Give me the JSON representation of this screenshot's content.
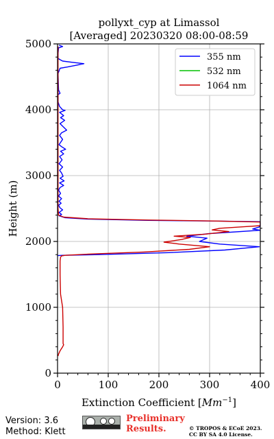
{
  "chart_data": {
    "type": "line",
    "title": "pollyxt_cyp at Limassol",
    "subtitle": "[Averaged] 20230320 08:00-08:59",
    "xlabel": "Extinction Coefficient [",
    "xlabel_unit": "Mm",
    "xlabel_exp": "−1",
    "xlabel_close": "]",
    "ylabel": "Height (m)",
    "xlim": [
      0,
      400
    ],
    "ylim": [
      0,
      5000
    ],
    "xticks": [
      0,
      100,
      200,
      300,
      400
    ],
    "yticks": [
      0,
      1000,
      2000,
      3000,
      4000,
      5000
    ],
    "xtick_labels": [
      "0",
      "100",
      "200",
      "300",
      "400"
    ],
    "ytick_labels": [
      "0",
      "1000",
      "2000",
      "3000",
      "4000",
      "5000"
    ],
    "grid": true,
    "legend_position": "top-right",
    "series": [
      {
        "name": "355 nm",
        "color": "#0000ff",
        "points": [
          [
            3,
            4980
          ],
          [
            10,
            4960
          ],
          [
            2,
            4940
          ],
          [
            1,
            4850
          ],
          [
            1,
            4780
          ],
          [
            5,
            4760
          ],
          [
            10,
            4740
          ],
          [
            30,
            4720
          ],
          [
            52,
            4700
          ],
          [
            40,
            4680
          ],
          [
            20,
            4650
          ],
          [
            5,
            4630
          ],
          [
            1,
            4550
          ],
          [
            2,
            4300
          ],
          [
            5,
            4250
          ],
          [
            1,
            4230
          ],
          [
            1,
            4120
          ],
          [
            4,
            4050
          ],
          [
            10,
            4000
          ],
          [
            15,
            3990
          ],
          [
            4,
            3960
          ],
          [
            12,
            3910
          ],
          [
            6,
            3880
          ],
          [
            14,
            3840
          ],
          [
            5,
            3790
          ],
          [
            18,
            3690
          ],
          [
            8,
            3650
          ],
          [
            4,
            3610
          ],
          [
            10,
            3550
          ],
          [
            3,
            3470
          ],
          [
            8,
            3440
          ],
          [
            16,
            3400
          ],
          [
            6,
            3370
          ],
          [
            12,
            3330
          ],
          [
            4,
            3290
          ],
          [
            9,
            3240
          ],
          [
            3,
            3180
          ],
          [
            10,
            3130
          ],
          [
            4,
            3080
          ],
          [
            8,
            3040
          ],
          [
            11,
            2990
          ],
          [
            5,
            2960
          ],
          [
            13,
            2920
          ],
          [
            4,
            2890
          ],
          [
            12,
            2850
          ],
          [
            5,
            2820
          ],
          [
            2,
            2780
          ],
          [
            6,
            2730
          ],
          [
            2,
            2690
          ],
          [
            8,
            2650
          ],
          [
            3,
            2610
          ],
          [
            7,
            2580
          ],
          [
            2,
            2550
          ],
          [
            5,
            2510
          ],
          [
            10,
            2480
          ],
          [
            3,
            2440
          ],
          [
            8,
            2410
          ],
          [
            3,
            2390
          ],
          [
            15,
            2360
          ],
          [
            60,
            2340
          ],
          [
            180,
            2320
          ],
          [
            300,
            2310
          ],
          [
            400,
            2300
          ],
          [
            400,
            2250
          ],
          [
            398,
            2220
          ],
          [
            385,
            2190
          ],
          [
            400,
            2170
          ],
          [
            300,
            2120
          ],
          [
            255,
            2080
          ],
          [
            295,
            2050
          ],
          [
            280,
            2000
          ],
          [
            320,
            1960
          ],
          [
            398,
            1920
          ],
          [
            330,
            1870
          ],
          [
            220,
            1830
          ],
          [
            80,
            1800
          ],
          [
            10,
            1790
          ],
          [
            0,
            1785
          ]
        ]
      },
      {
        "name": "532 nm",
        "color": "#00c000",
        "points": []
      },
      {
        "name": "1064 nm",
        "color": "#cc0000",
        "points": [
          [
            1,
            4960
          ],
          [
            1,
            4700
          ],
          [
            1,
            4400
          ],
          [
            1,
            4000
          ],
          [
            1,
            3600
          ],
          [
            1,
            3200
          ],
          [
            1,
            2800
          ],
          [
            1,
            2500
          ],
          [
            2,
            2400
          ],
          [
            12,
            2370
          ],
          [
            60,
            2345
          ],
          [
            180,
            2325
          ],
          [
            310,
            2310
          ],
          [
            400,
            2295
          ],
          [
            400,
            2240
          ],
          [
            370,
            2225
          ],
          [
            320,
            2200
          ],
          [
            305,
            2175
          ],
          [
            338,
            2150
          ],
          [
            290,
            2110
          ],
          [
            230,
            2080
          ],
          [
            262,
            2060
          ],
          [
            245,
            2030
          ],
          [
            210,
            1990
          ],
          [
            240,
            1960
          ],
          [
            300,
            1920
          ],
          [
            260,
            1880
          ],
          [
            170,
            1840
          ],
          [
            70,
            1810
          ],
          [
            15,
            1790
          ],
          [
            8,
            1780
          ],
          [
            6,
            1760
          ],
          [
            5,
            1700
          ],
          [
            5,
            1500
          ],
          [
            6,
            1200
          ],
          [
            10,
            1000
          ],
          [
            11,
            700
          ],
          [
            11,
            450
          ],
          [
            12,
            430
          ],
          [
            10,
            400
          ],
          [
            5,
            340
          ],
          [
            2,
            290
          ],
          [
            1,
            260
          ]
        ]
      }
    ]
  },
  "footer": {
    "version": "Version: 3.6",
    "method": "Method: Klett",
    "preliminary_line1": "Preliminary",
    "preliminary_line2": "Results.",
    "copyright_line1": "© TROPOS & ECoE 2023.",
    "copyright_line2": "CC BY SA 4.0 License.",
    "license_badge_icon": "cc-by-sa-icon"
  }
}
